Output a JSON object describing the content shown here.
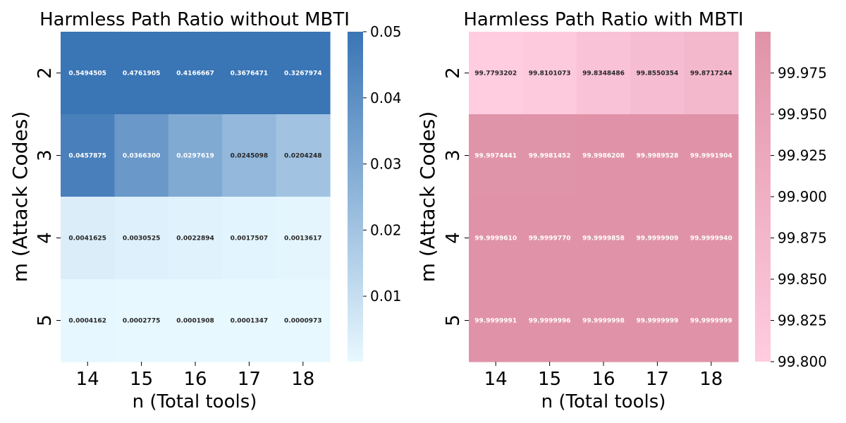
{
  "chart_data": [
    {
      "type": "heatmap",
      "title": "Harmless Path Ratio without MBTI",
      "xlabel": "n (Total tools)",
      "ylabel": "m (Attack Codes)",
      "x_categories": [
        "14",
        "15",
        "16",
        "17",
        "18"
      ],
      "y_categories": [
        "2",
        "3",
        "4",
        "5"
      ],
      "values": [
        [
          0.5494505,
          0.4761905,
          0.4166667,
          0.3676471,
          0.3267974
        ],
        [
          0.0457875,
          0.03663,
          0.0297619,
          0.0245098,
          0.0204248
        ],
        [
          0.0041625,
          0.0030525,
          0.0022894,
          0.0017507,
          0.0013617
        ],
        [
          0.0004162,
          0.0002775,
          0.0001908,
          0.0001347,
          9.73e-05
        ]
      ],
      "labels": [
        [
          "0.5494505",
          "0.4761905",
          "0.4166667",
          "0.3676471",
          "0.3267974"
        ],
        [
          "0.0457875",
          "0.0366300",
          "0.0297619",
          "0.0245098",
          "0.0204248"
        ],
        [
          "0.0041625",
          "0.0030525",
          "0.0022894",
          "0.0017507",
          "0.0013617"
        ],
        [
          "0.0004162",
          "0.0002775",
          "0.0001908",
          "0.0001347",
          "0.0000973"
        ]
      ],
      "colorbar": {
        "vmin": 9.73e-05,
        "vmax": 0.05,
        "ticks": [
          0.01,
          0.02,
          0.03,
          0.04,
          0.05
        ],
        "tick_labels": [
          "0.01",
          "0.02",
          "0.03",
          "0.04",
          "0.05"
        ],
        "colors": [
          "#e8f8ff",
          "#3a75b5"
        ]
      }
    },
    {
      "type": "heatmap",
      "title": "Harmless Path Ratio with MBTI",
      "xlabel": "n (Total tools)",
      "ylabel": "m (Attack Codes)",
      "x_categories": [
        "14",
        "15",
        "16",
        "17",
        "18"
      ],
      "y_categories": [
        "2",
        "3",
        "4",
        "5"
      ],
      "values": [
        [
          99.7793202,
          99.8101073,
          99.8348486,
          99.8550354,
          99.8717244
        ],
        [
          99.9974441,
          99.9981452,
          99.9986208,
          99.9989528,
          99.9991904
        ],
        [
          99.999961,
          99.999977,
          99.9999858,
          99.9999909,
          99.999994
        ],
        [
          99.9999991,
          99.9999996,
          99.9999998,
          99.9999999,
          99.9999999
        ]
      ],
      "labels": [
        [
          "99.7793202",
          "99.8101073",
          "99.8348486",
          "99.8550354",
          "99.8717244"
        ],
        [
          "99.9974441",
          "99.9981452",
          "99.9986208",
          "99.9989528",
          "99.9991904"
        ],
        [
          "99.9999610",
          "99.9999770",
          "99.9999858",
          "99.9999909",
          "99.9999940"
        ],
        [
          "99.9999991",
          "99.9999996",
          "99.9999998",
          "99.9999999",
          "99.9999999"
        ]
      ],
      "colorbar": {
        "vmin": 99.8,
        "vmax": 99.9999999,
        "ticks": [
          99.8,
          99.825,
          99.85,
          99.875,
          99.9,
          99.925,
          99.95,
          99.975
        ],
        "tick_labels": [
          "99.800",
          "99.825",
          "99.850",
          "99.875",
          "99.900",
          "99.925",
          "99.950",
          "99.975"
        ],
        "colors": [
          "#ffcce0",
          "#e093a8"
        ]
      }
    }
  ]
}
